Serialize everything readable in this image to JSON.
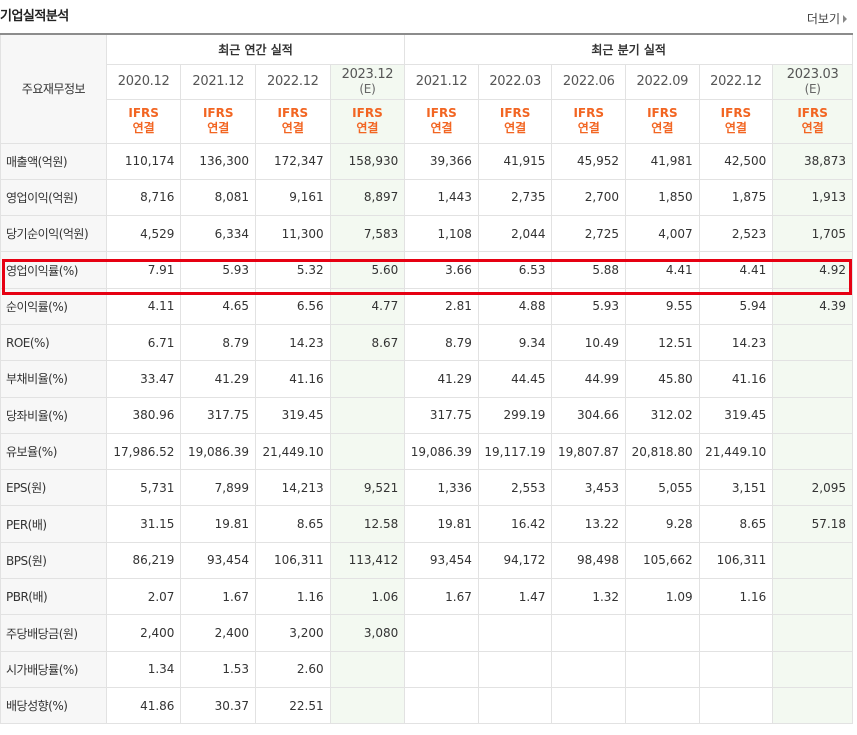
{
  "title": "기업실적분석",
  "more_label": "더보기",
  "header": {
    "row_label": "주요재무정보",
    "annual_group": "최근 연간 실적",
    "quarter_group": "최근 분기 실적",
    "periods": [
      {
        "label": "2020.12",
        "est": ""
      },
      {
        "label": "2021.12",
        "est": ""
      },
      {
        "label": "2022.12",
        "est": ""
      },
      {
        "label": "2023.12",
        "est": "(E)"
      },
      {
        "label": "2021.12",
        "est": ""
      },
      {
        "label": "2022.03",
        "est": ""
      },
      {
        "label": "2022.06",
        "est": ""
      },
      {
        "label": "2022.09",
        "est": ""
      },
      {
        "label": "2022.12",
        "est": ""
      },
      {
        "label": "2023.03",
        "est": "(E)"
      }
    ],
    "acct_line1": "IFRS",
    "acct_line2": "연결"
  },
  "rows": [
    {
      "label": "매출액(억원)",
      "values": [
        "110,174",
        "136,300",
        "172,347",
        "158,930",
        "39,366",
        "41,915",
        "45,952",
        "41,981",
        "42,500",
        "38,873"
      ]
    },
    {
      "label": "영업이익(억원)",
      "values": [
        "8,716",
        "8,081",
        "9,161",
        "8,897",
        "1,443",
        "2,735",
        "2,700",
        "1,850",
        "1,875",
        "1,913"
      ]
    },
    {
      "label": "당기순이익(억원)",
      "values": [
        "4,529",
        "6,334",
        "11,300",
        "7,583",
        "1,108",
        "2,044",
        "2,725",
        "4,007",
        "2,523",
        "1,705"
      ]
    },
    {
      "label": "영업이익률(%)",
      "values": [
        "7.91",
        "5.93",
        "5.32",
        "5.60",
        "3.66",
        "6.53",
        "5.88",
        "4.41",
        "4.41",
        "4.92"
      ]
    },
    {
      "label": "순이익률(%)",
      "values": [
        "4.11",
        "4.65",
        "6.56",
        "4.77",
        "2.81",
        "4.88",
        "5.93",
        "9.55",
        "5.94",
        "4.39"
      ]
    },
    {
      "label": "ROE(%)",
      "values": [
        "6.71",
        "8.79",
        "14.23",
        "8.67",
        "8.79",
        "9.34",
        "10.49",
        "12.51",
        "14.23",
        ""
      ]
    },
    {
      "label": "부채비율(%)",
      "values": [
        "33.47",
        "41.29",
        "41.16",
        "",
        "41.29",
        "44.45",
        "44.99",
        "45.80",
        "41.16",
        ""
      ]
    },
    {
      "label": "당좌비율(%)",
      "values": [
        "380.96",
        "317.75",
        "319.45",
        "",
        "317.75",
        "299.19",
        "304.66",
        "312.02",
        "319.45",
        ""
      ]
    },
    {
      "label": "유보율(%)",
      "values": [
        "17,986.52",
        "19,086.39",
        "21,449.10",
        "",
        "19,086.39",
        "19,117.19",
        "19,807.87",
        "20,818.80",
        "21,449.10",
        ""
      ]
    },
    {
      "label": "EPS(원)",
      "values": [
        "5,731",
        "7,899",
        "14,213",
        "9,521",
        "1,336",
        "2,553",
        "3,453",
        "5,055",
        "3,151",
        "2,095"
      ]
    },
    {
      "label": "PER(배)",
      "values": [
        "31.15",
        "19.81",
        "8.65",
        "12.58",
        "19.81",
        "16.42",
        "13.22",
        "9.28",
        "8.65",
        "57.18"
      ]
    },
    {
      "label": "BPS(원)",
      "values": [
        "86,219",
        "93,454",
        "106,311",
        "113,412",
        "93,454",
        "94,172",
        "98,498",
        "105,662",
        "106,311",
        ""
      ]
    },
    {
      "label": "PBR(배)",
      "values": [
        "2.07",
        "1.67",
        "1.16",
        "1.06",
        "1.67",
        "1.47",
        "1.32",
        "1.09",
        "1.16",
        ""
      ]
    },
    {
      "label": "주당배당금(원)",
      "values": [
        "2,400",
        "2,400",
        "3,200",
        "3,080",
        "",
        "",
        "",
        "",
        "",
        ""
      ]
    },
    {
      "label": "시가배당률(%)",
      "values": [
        "1.34",
        "1.53",
        "2.60",
        "",
        "",
        "",
        "",
        "",
        "",
        ""
      ]
    },
    {
      "label": "배당성향(%)",
      "values": [
        "41.86",
        "30.37",
        "22.51",
        "",
        "",
        "",
        "",
        "",
        "",
        ""
      ]
    }
  ],
  "group_start_rows": [
    6,
    9,
    13
  ],
  "highlight_row": 3,
  "colors": {
    "accent": "#f26522",
    "highlight": "#e60012",
    "estimate_bg": "#f3f9f1"
  }
}
